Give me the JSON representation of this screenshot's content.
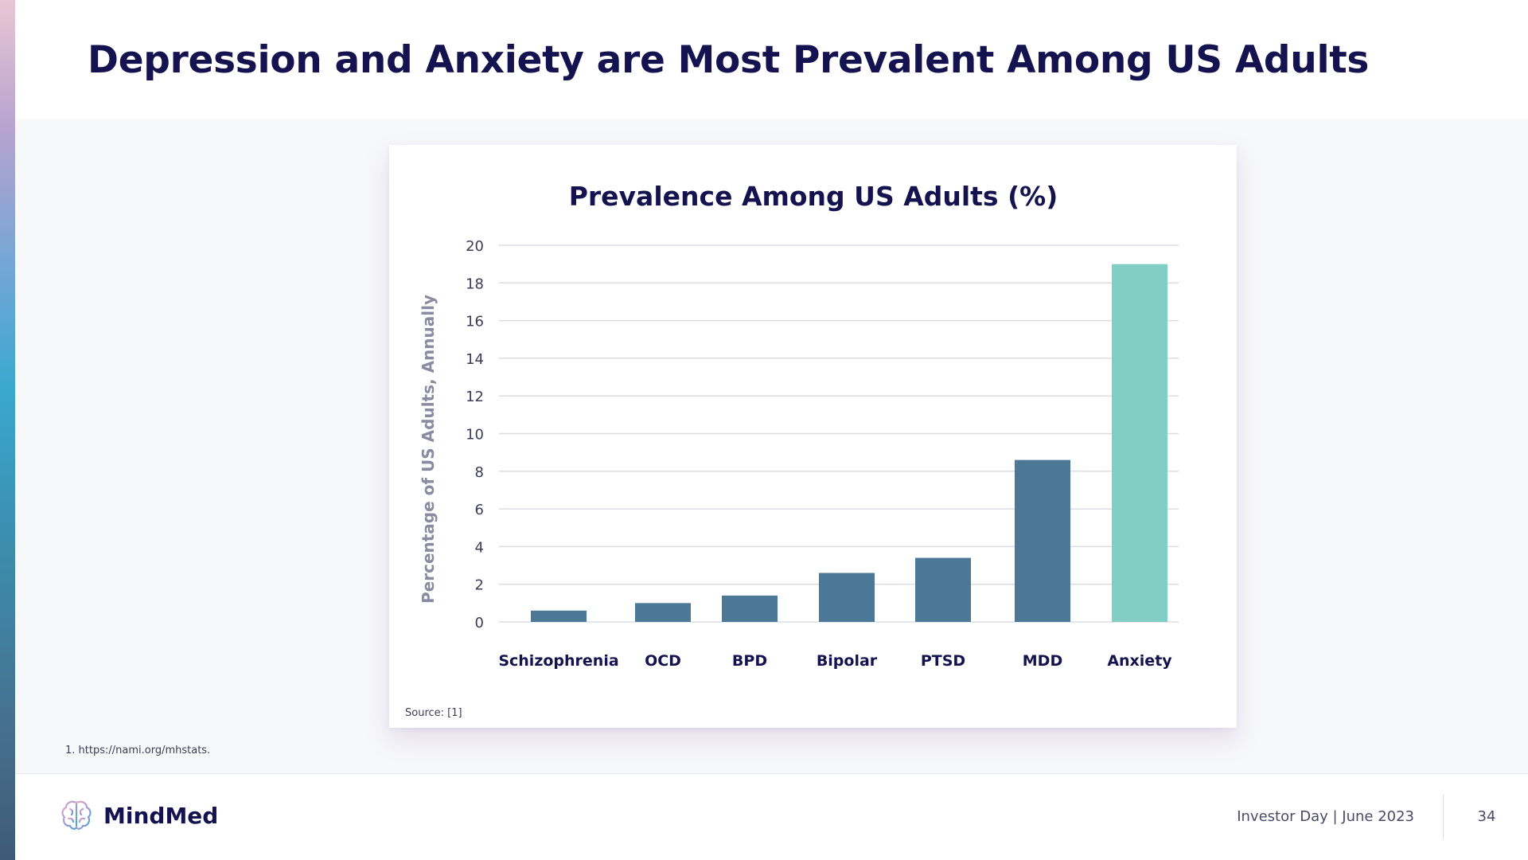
{
  "slide": {
    "title": "Depression and Anxiety are Most Prevalent Among US Adults",
    "footnote": "1. https://nami.org/mhstats.",
    "brand": "MindMed",
    "event": "Investor Day | June 2023",
    "page_number": "34"
  },
  "colors": {
    "title": "#14124f",
    "bar": "#4a7896",
    "highlight_bar": "#80cec4",
    "highlight_label": "#3aa6cf",
    "grid": "#dcdde3"
  },
  "chart_data": {
    "type": "bar",
    "title": "Prevalence Among US Adults (%)",
    "xlabel": "",
    "ylabel": "Percentage of US Adults, Annually",
    "categories": [
      "Schizophrenia",
      "OCD",
      "BPD",
      "Bipolar",
      "PTSD",
      "MDD",
      "Anxiety"
    ],
    "values": [
      0.6,
      1.0,
      1.4,
      2.6,
      3.4,
      8.6,
      19.0
    ],
    "highlight": "Anxiety",
    "ylim": [
      0,
      20
    ],
    "yticks": [
      0,
      2,
      4,
      6,
      8,
      10,
      12,
      14,
      16,
      18,
      20
    ],
    "grid": true,
    "source": "Source: [1]"
  }
}
